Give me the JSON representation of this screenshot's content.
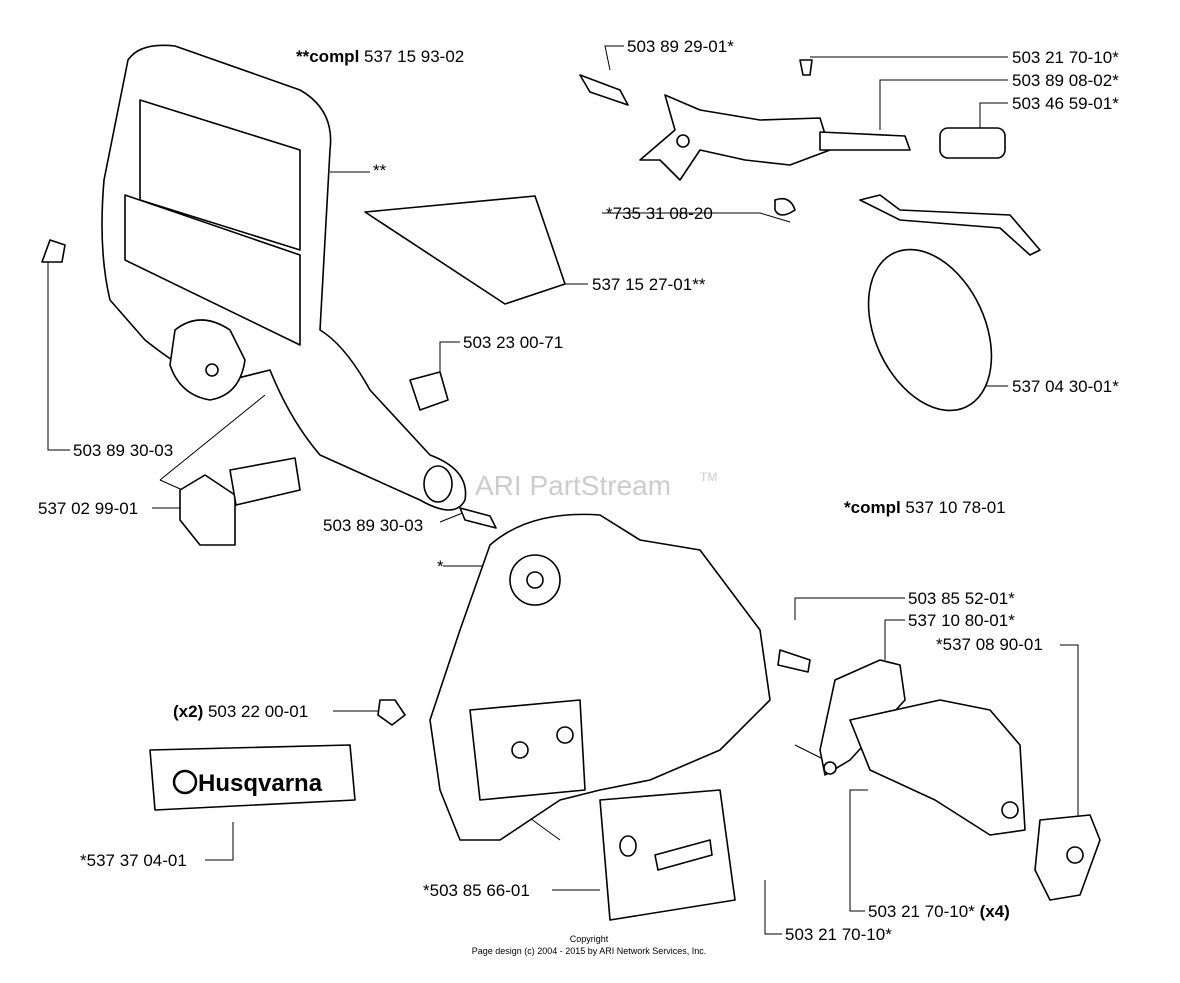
{
  "labels": [
    {
      "prefix": "**compl",
      "text": "537 15 93-02"
    },
    {
      "text": "**"
    },
    {
      "text": "503 89 29-01*"
    },
    {
      "text": "503 21 70-10*"
    },
    {
      "text": "503 89 08-02*"
    },
    {
      "text": "503 46 59-01*"
    },
    {
      "text": "*735 31 08-20"
    },
    {
      "text": "537 15 27-01**"
    },
    {
      "text": "503 23 00-71"
    },
    {
      "text": "537 04 30-01*"
    },
    {
      "text": "503 89 30-03"
    },
    {
      "text": "537 02 99-01"
    },
    {
      "text": "503 89 30-03"
    },
    {
      "prefix": "*compl",
      "text": "537 10 78-01"
    },
    {
      "text": "*"
    },
    {
      "text": "503 85 52-01*"
    },
    {
      "text": "537 10 80-01*"
    },
    {
      "text": "*537 08 90-01"
    },
    {
      "prefix": "(x2)",
      "text": "503 22 00-01"
    },
    {
      "text": "*537 37 04-01"
    },
    {
      "text": "*503 85 66-01"
    },
    {
      "text": "503 21 70-10*",
      "suffix": "(x4)"
    },
    {
      "text": "503 21 70-10*"
    }
  ],
  "watermark": {
    "text": "ARI PartStream",
    "mark": "TM"
  },
  "logo": "Husqvarna",
  "footer": {
    "line1": "Copyright",
    "line2": "Page design (c) 2004 - 2015 by ARI Network Services, Inc."
  }
}
